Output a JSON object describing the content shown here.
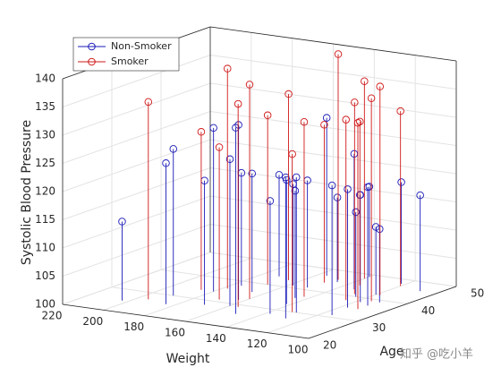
{
  "chart_data": {
    "type": "stem3",
    "xlabel": "Weight",
    "ylabel": "Age",
    "zlabel": "Systolic Blood Pressure",
    "xlim": [
      100,
      220
    ],
    "xticks": [
      100,
      120,
      140,
      160,
      180,
      200,
      220
    ],
    "ylim": [
      20,
      50
    ],
    "yticks": [
      20,
      30,
      40,
      50
    ],
    "zlim": [
      100,
      140
    ],
    "zticks": [
      100,
      105,
      110,
      115,
      120,
      125,
      130,
      135,
      140
    ],
    "grid": true,
    "legend_position": "northwest",
    "series": [
      {
        "name": "Non-Smoker",
        "color": "#1a1ab8",
        "x": [
          203,
          190,
          176,
          172,
          184,
          166,
          160,
          151,
          142,
          135,
          128,
          122,
          118,
          115,
          133,
          145,
          156,
          170,
          180,
          125,
          112,
          108,
          140,
          150,
          163,
          130,
          120,
          117,
          111,
          138,
          146,
          158
        ],
        "y": [
          25,
          30,
          38,
          44,
          26,
          36,
          29,
          41,
          33,
          45,
          27,
          48,
          38,
          31,
          43,
          36,
          47,
          28,
          34,
          40,
          37,
          46,
          49,
          26,
          32,
          30,
          42,
          35,
          39,
          28,
          45,
          41
        ],
        "z": [
          114,
          126,
          120,
          118,
          125,
          121,
          126,
          119,
          122,
          116,
          125,
          118,
          119,
          123,
          124,
          119,
          128,
          122,
          129,
          115,
          121,
          117,
          116,
          133,
          131,
          124,
          112,
          121,
          113,
          120,
          115,
          118
        ]
      },
      {
        "name": "Smoker",
        "color": "#d01818",
        "x": [
          195,
          178,
          168,
          160,
          150,
          140,
          132,
          125,
          118,
          112,
          148,
          156,
          170,
          135,
          128,
          120,
          115,
          165,
          186,
          143
        ],
        "y": [
          27,
          36,
          40,
          33,
          44,
          48,
          30,
          38,
          42,
          35,
          46,
          29,
          31,
          45,
          41,
          47,
          39,
          43,
          34,
          37
        ],
        "z": [
          135,
          139,
          130,
          138,
          128,
          135,
          128,
          132,
          137,
          133,
          140,
          136,
          127,
          129,
          134,
          131,
          136,
          133,
          128,
          131
        ]
      }
    ],
    "watermark": "知乎 @吃小羊"
  }
}
